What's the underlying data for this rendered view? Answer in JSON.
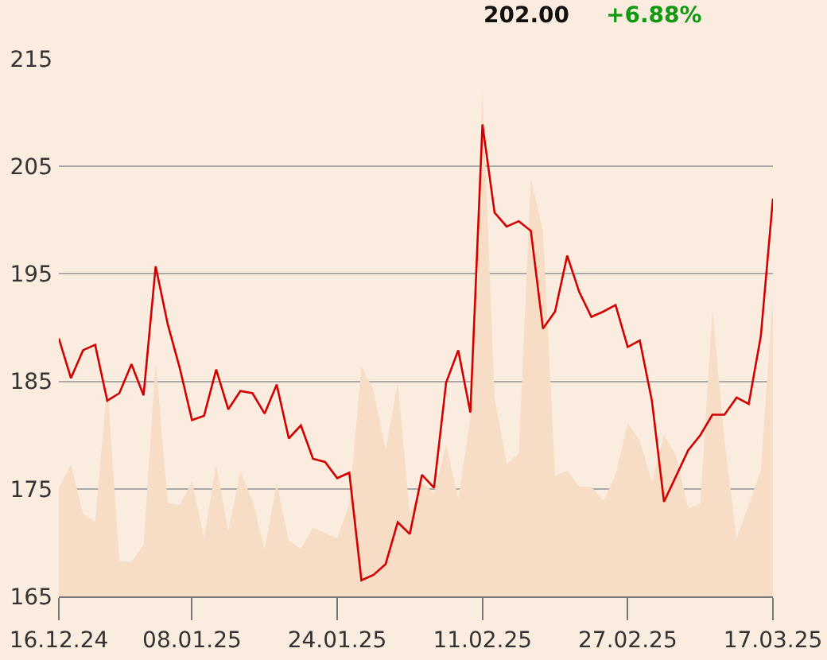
{
  "chart_data": {
    "type": "line",
    "annotations": [
      "202.00",
      "+6.88%"
    ],
    "categories": [
      "16.12.24",
      null,
      null,
      null,
      null,
      null,
      null,
      null,
      null,
      null,
      null,
      "08.01.25",
      null,
      null,
      null,
      null,
      null,
      null,
      null,
      null,
      null,
      null,
      null,
      "24.01.25",
      null,
      null,
      null,
      null,
      null,
      null,
      null,
      null,
      null,
      null,
      null,
      "11.02.25",
      null,
      null,
      null,
      null,
      null,
      null,
      null,
      null,
      null,
      null,
      null,
      "27.02.25",
      null,
      null,
      null,
      null,
      null,
      null,
      null,
      null,
      null,
      null,
      null,
      "17.03.25"
    ],
    "series": [
      {
        "type": "area",
        "color": "#f7dcc6",
        "values": [
          175.1,
          177.3,
          172.7,
          171.9,
          184.7,
          168.3,
          168.2,
          169.8,
          186.8,
          173.7,
          173.5,
          175.7,
          170.4,
          177.3,
          171.1,
          176.6,
          173.9,
          169.3,
          175.5,
          170.2,
          169.4,
          171.4,
          170.9,
          170.4,
          173.6,
          186.4,
          184.2,
          178.6,
          184.9,
          172.6,
          175.6,
          174.6,
          179.1,
          174.1,
          181.5,
          212.1,
          183.5,
          177.3,
          178.3,
          203.8,
          199.0,
          176.2,
          176.7,
          175.2,
          175.2,
          173.9,
          176.3,
          181.1,
          179.5,
          175.6,
          180.0,
          178.1,
          173.2,
          173.6,
          191.6,
          179.5,
          170.4,
          173.5,
          176.7,
          192.9
        ]
      },
      {
        "color": "#d40000",
        "values": [
          189.0,
          185.3,
          187.9,
          188.4,
          183.2,
          183.9,
          186.6,
          183.7,
          195.7,
          190.3,
          186.2,
          181.4,
          181.8,
          186.1,
          182.4,
          184.1,
          183.9,
          182.0,
          184.7,
          179.7,
          180.9,
          177.8,
          177.5,
          176.0,
          176.5,
          166.5,
          167.0,
          168.0,
          171.9,
          170.8,
          176.3,
          175.1,
          184.9,
          187.9,
          182.1,
          208.9,
          200.7,
          199.4,
          199.9,
          199.0,
          189.9,
          191.5,
          196.7,
          193.3,
          191.0,
          191.5,
          192.1,
          188.2,
          188.8,
          183.2,
          173.8,
          176.2,
          178.6,
          180.0,
          181.9,
          181.9,
          183.5,
          182.9,
          189.2,
          202.0
        ]
      }
    ],
    "ylim": [
      165,
      215
    ],
    "yticks": [
      165,
      175,
      185,
      195,
      205,
      215
    ],
    "grid": "y"
  }
}
